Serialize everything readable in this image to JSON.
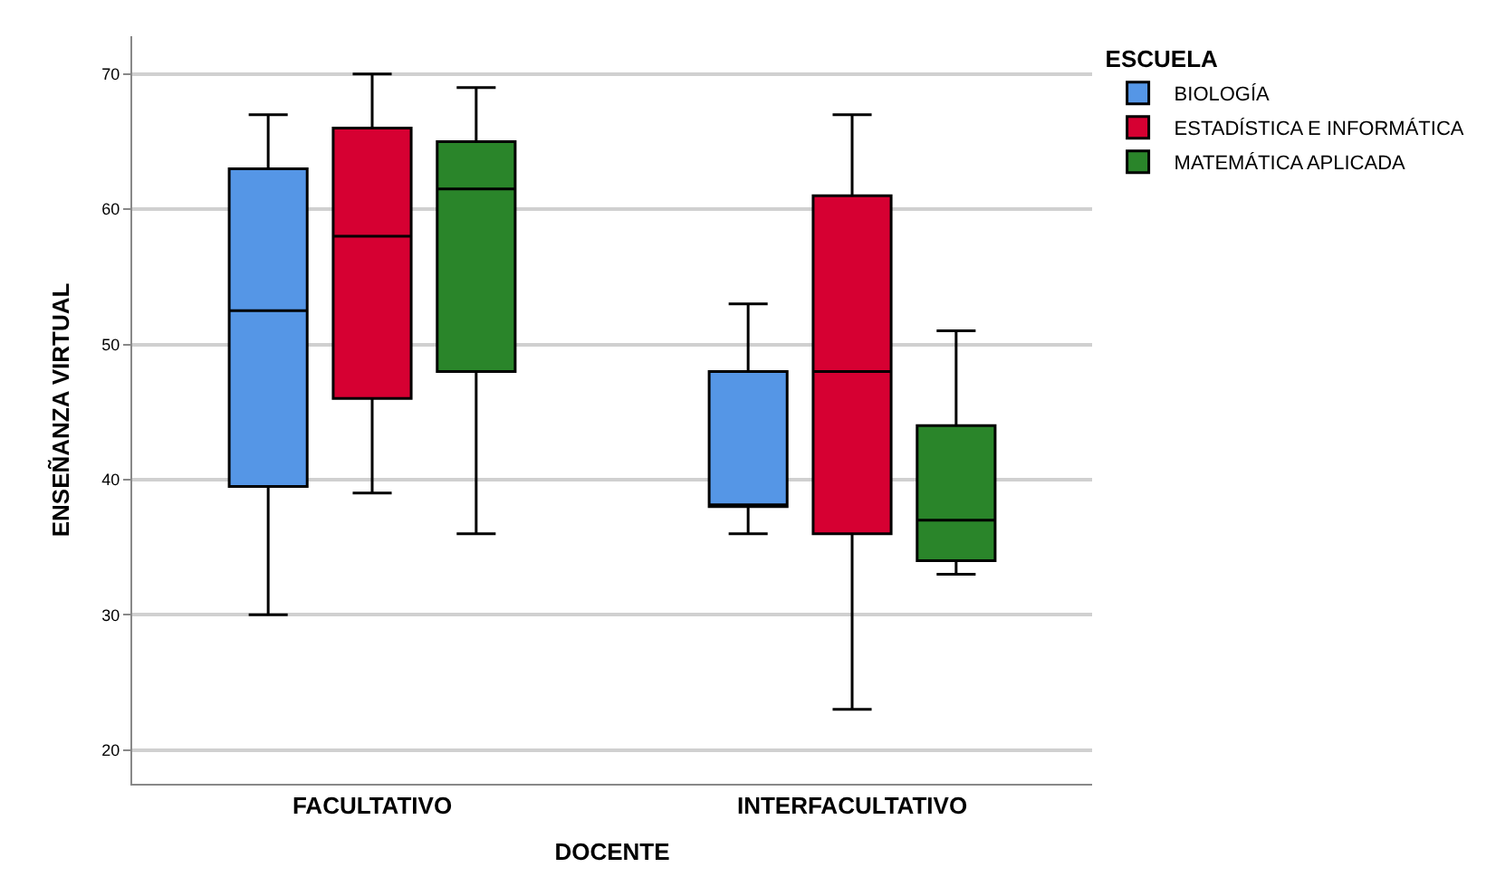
{
  "chart_data": {
    "type": "box",
    "xlabel": "DOCENTE",
    "ylabel": "ENSEÑANZA VIRTUAL",
    "legend_title": "ESCUELA",
    "categories": [
      "FACULTATIVO",
      "INTERFACULTATIVO"
    ],
    "series": [
      {
        "name": "BIOLOGÍA",
        "color": "#5596e6",
        "boxes": [
          {
            "low": 30,
            "q1": 39.5,
            "median": 52.5,
            "q3": 63,
            "high": 67
          },
          {
            "low": 36,
            "q1": 38,
            "median": 38,
            "q3": 48,
            "high": 53
          }
        ]
      },
      {
        "name": "ESTADÍSTICA E INFORMÁTICA",
        "color": "#d60032",
        "boxes": [
          {
            "low": 39,
            "q1": 46,
            "median": 58,
            "q3": 66,
            "high": 70
          },
          {
            "low": 23,
            "q1": 36,
            "median": 48,
            "q3": 61,
            "high": 67
          }
        ]
      },
      {
        "name": "MATEMÁTICA APLICADA",
        "color": "#2a852a",
        "boxes": [
          {
            "low": 36,
            "q1": 48,
            "median": 61.5,
            "q3": 65,
            "high": 69
          },
          {
            "low": 33,
            "q1": 34,
            "median": 37,
            "q3": 44,
            "high": 51
          }
        ]
      }
    ],
    "ylim": [
      17.5,
      72.8
    ],
    "yticks": [
      20,
      30,
      40,
      50,
      60,
      70
    ],
    "grid": "y",
    "legend": "top right"
  }
}
